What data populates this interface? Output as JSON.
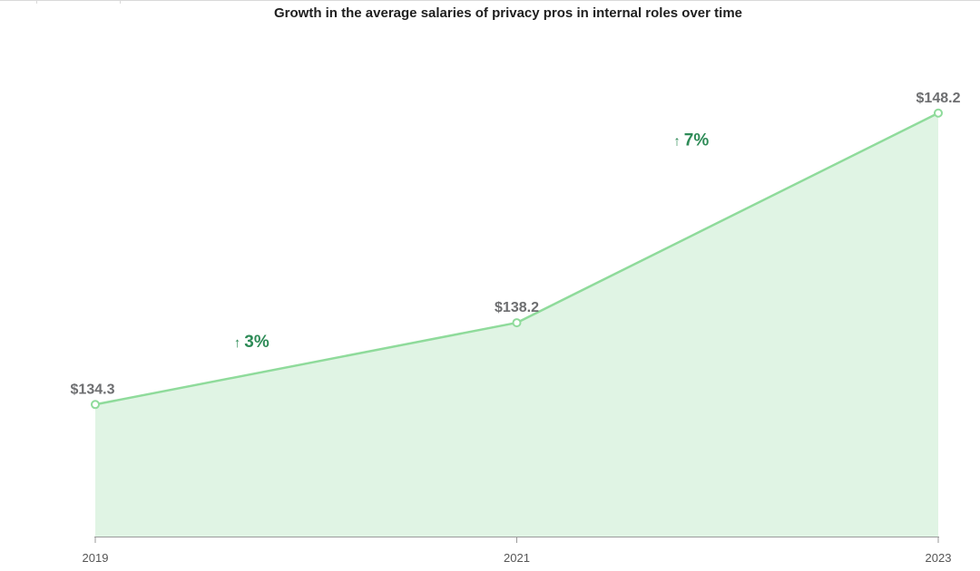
{
  "chart_data": {
    "type": "area",
    "title": "Growth in the average salaries of privacy pros in internal roles over time",
    "xlabel": "",
    "ylabel": "",
    "categories": [
      "2019",
      "2021",
      "2023"
    ],
    "values": [
      134.3,
      138.2,
      148.2
    ],
    "value_labels": [
      "$134.3",
      "$138.2",
      "$148.2"
    ],
    "growth_annotations": [
      {
        "from": "2019",
        "to": "2021",
        "arrow": "🡑",
        "label": "3%"
      },
      {
        "from": "2021",
        "to": "2023",
        "arrow": "🡑",
        "label": "7%"
      }
    ],
    "ylim": [
      128,
      151
    ],
    "grid": false,
    "legend": "none",
    "colors": {
      "line": "#8fdb9b",
      "fill": "#e0f4e4",
      "marker_fill": "#ffffff",
      "value_text": "#6d6e70",
      "growth_text": "#2e8b57",
      "axis": "#9a9a9a"
    }
  }
}
